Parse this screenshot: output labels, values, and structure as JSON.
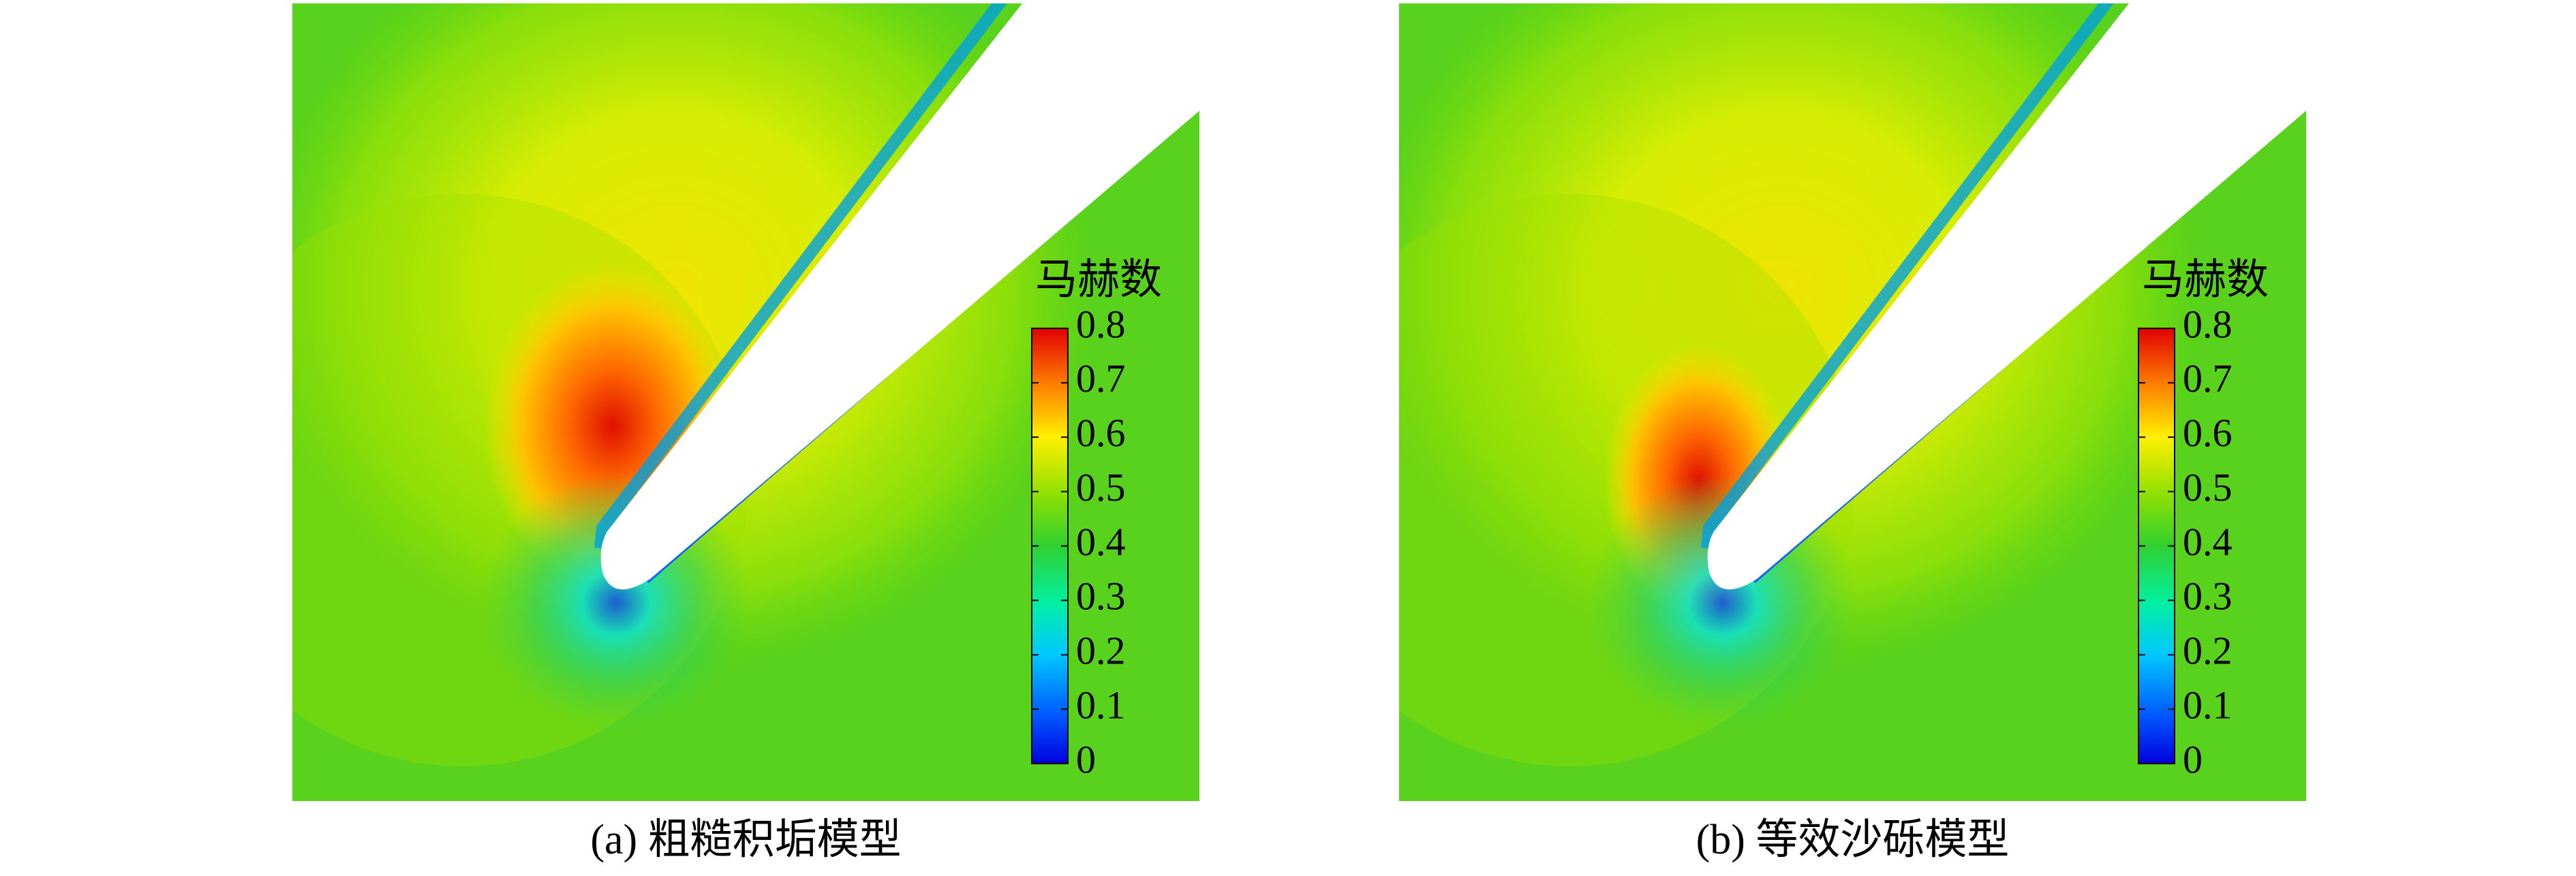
{
  "panels": [
    {
      "caption": "(a) 粗糙积垢模型",
      "legend": {
        "title": "马赫数",
        "ticks": [
          0,
          0.1,
          0.2,
          0.3,
          0.4,
          0.5,
          0.6,
          0.7,
          0.8
        ]
      }
    },
    {
      "caption": "(b) 等效沙砾模型",
      "legend": {
        "title": "马赫数",
        "ticks": [
          0,
          0.1,
          0.2,
          0.3,
          0.4,
          0.5,
          0.6,
          0.7,
          0.8
        ]
      }
    }
  ]
}
